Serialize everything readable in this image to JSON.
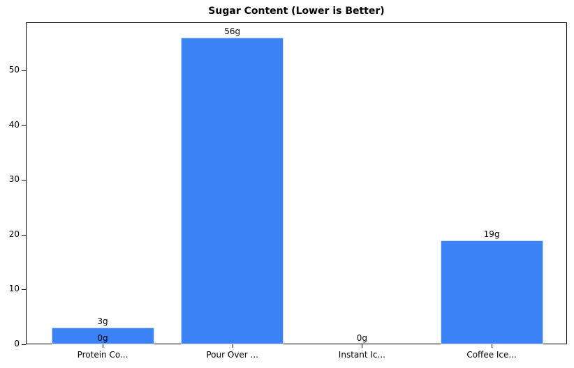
{
  "chart_data": {
    "type": "bar",
    "title": "Sugar Content (Lower is Better)",
    "xlabel": "",
    "ylabel": "",
    "categories": [
      "Protein Co...",
      "Pour Over ...",
      "Instant Ic...",
      "Coffee Ice..."
    ],
    "values": [
      3,
      56,
      0,
      19
    ],
    "value_labels": [
      "3g",
      "56g",
      "0g",
      "19g"
    ],
    "extra_annotations": [
      {
        "text": "0g",
        "category_index": 0,
        "y": 0
      }
    ],
    "yticks": [
      0,
      10,
      20,
      30,
      40,
      50
    ],
    "ylim": [
      0,
      58.8
    ],
    "grid": false,
    "legend": null,
    "bar_color": "#3b82f6"
  }
}
